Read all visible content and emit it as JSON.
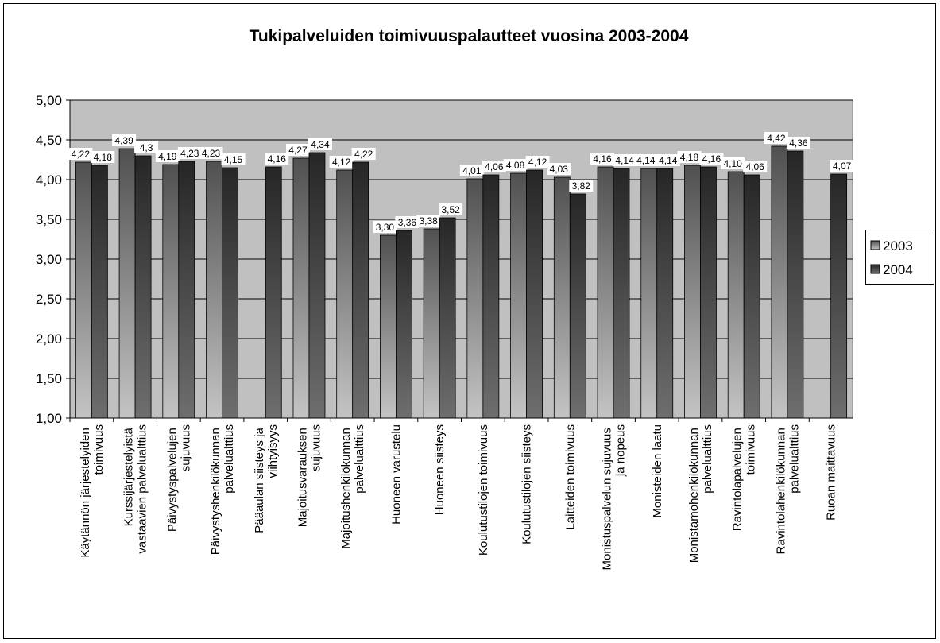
{
  "chart_data": {
    "type": "bar",
    "title": "Tukipalveluiden toimivuuspalautteet vuosina 2003-2004",
    "categories": [
      "Käytännön järjestelyiden toimivuus",
      "Kurssijärjestelyistä vastaavien palvelualttius",
      "Päivystyspalvelujen sujuvuus",
      "Päivystyshenkilökunnan palvelualttius",
      "Pääaulan siisteys ja viihtyisyys",
      "Majoitusvarauksen sujuvuus",
      "Majoitushenkilökunnan palvelualttius",
      "Huoneen varustelu",
      "Huoneen siisteys",
      "Koulutustilojen toimivuus",
      "Koulutustilojen siisteys",
      "Laitteiden toimivuus",
      "Monistuspalvelun sujuvuus ja nopeus",
      "Monisteiden laatu",
      "Monistamohenkilökunnan palvelualttius",
      "Ravintolapalvelujen toimivuus",
      "Ravintolahenkilökunnan palvelualttius",
      "Ruoan maittavuus"
    ],
    "series": [
      {
        "name": "2003",
        "color": "#8c8c8c",
        "values": [
          4.22,
          4.39,
          4.19,
          4.23,
          null,
          4.27,
          4.12,
          3.3,
          3.38,
          4.01,
          4.08,
          4.03,
          4.16,
          4.14,
          4.18,
          4.1,
          4.42,
          null
        ],
        "value_labels": [
          "4,22",
          "4,39",
          "4,19",
          "4,23",
          null,
          "4,27",
          "4,12",
          "3,30",
          "3,38",
          "4,01",
          "4,08",
          "4,03",
          "4,16",
          "4,14",
          "4,18",
          "4,10",
          "4,42",
          null
        ]
      },
      {
        "name": "2004",
        "color": "#4a4a4a",
        "values": [
          4.18,
          4.3,
          4.23,
          4.15,
          4.16,
          4.34,
          4.22,
          3.36,
          3.52,
          4.06,
          4.12,
          3.82,
          4.14,
          4.14,
          4.16,
          4.06,
          4.36,
          4.07
        ],
        "value_labels": [
          "4,18",
          "4,3",
          "4,23",
          "4,15",
          "4,16",
          "4,34",
          "4,22",
          "3,36",
          "3,52",
          "4,06",
          "4,12",
          "3,82",
          "4,14",
          "4,14",
          "4,16",
          "4,06",
          "4,36",
          "4,07"
        ]
      }
    ],
    "ylim": [
      1,
      5
    ],
    "yticks": [
      {
        "value": 1,
        "label": "1,00"
      },
      {
        "value": 1.5,
        "label": "1,50"
      },
      {
        "value": 2,
        "label": "2,00"
      },
      {
        "value": 2.5,
        "label": "2,50"
      },
      {
        "value": 3,
        "label": "3,00"
      },
      {
        "value": 3.5,
        "label": "3,50"
      },
      {
        "value": 4,
        "label": "4,00"
      },
      {
        "value": 4.5,
        "label": "4,50"
      },
      {
        "value": 5,
        "label": "5,00"
      }
    ],
    "grid": true,
    "legend": "right"
  }
}
